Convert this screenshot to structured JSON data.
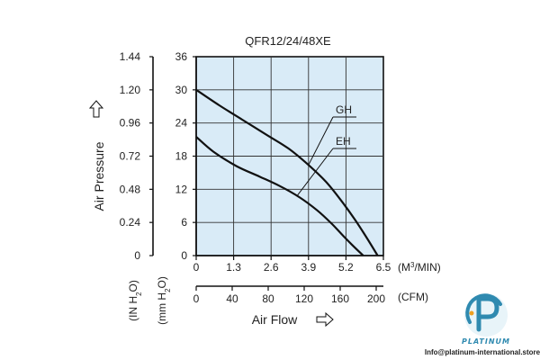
{
  "chart_data": {
    "type": "line",
    "title": "QFR12/24/48XE",
    "xlabel": "Air Flow",
    "ylabel": "Air Pressure",
    "x_unit_primary": "(M3/MIN)",
    "x_unit_secondary": "(CFM)",
    "y_unit_in": "(IN H2O)",
    "y_unit_mm": "(mm H2O)",
    "xlim": [
      0,
      6.5
    ],
    "ylim": [
      0,
      36
    ],
    "x_ticks": [
      "0",
      "1.3",
      "2.6",
      "3.9",
      "5.2",
      "6.5"
    ],
    "x_ticks_cfm": [
      "0",
      "40",
      "80",
      "120",
      "160",
      "200"
    ],
    "y_ticks_mm": [
      "0",
      "6",
      "12",
      "18",
      "24",
      "30",
      "36"
    ],
    "y_ticks_in": [
      "0",
      "0.24",
      "0.48",
      "0.72",
      "0.96",
      "1.20",
      "1.44"
    ],
    "grid": true,
    "series": [
      {
        "name": "GH",
        "x": [
          0,
          0.8,
          1.6,
          2.4,
          3.2,
          3.9,
          4.5,
          5.0,
          5.5,
          5.9,
          6.3
        ],
        "y": [
          30,
          27.2,
          24.6,
          22.0,
          19.4,
          16.4,
          13.4,
          10.2,
          6.6,
          3.4,
          0
        ]
      },
      {
        "name": "EH",
        "x": [
          0,
          0.6,
          1.4,
          2.2,
          2.9,
          3.6,
          4.2,
          4.7,
          5.1,
          5.4,
          5.8
        ],
        "y": [
          21.5,
          18.8,
          16.2,
          14.3,
          12.6,
          10.5,
          8.2,
          5.8,
          3.6,
          2.0,
          0
        ]
      }
    ]
  },
  "colors": {
    "plot_background": "#d9ebf7",
    "grid": "#333333",
    "curve": "#111111",
    "logo_blue": "#2f8ab0"
  },
  "logo": {
    "word": "PLATINUM",
    "contact": "Info@platinum-international.store"
  }
}
